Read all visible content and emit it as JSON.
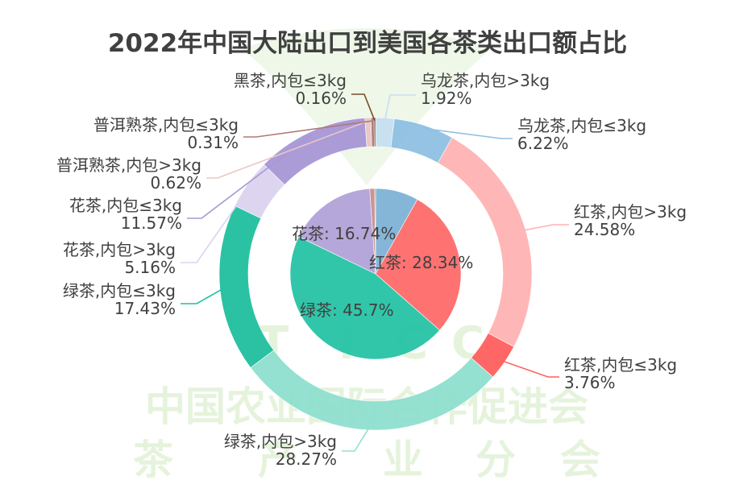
{
  "watermark": {
    "line1": "中国农业国际合作促进会",
    "line2_chars": [
      "茶",
      "产",
      "业",
      "分",
      "会"
    ],
    "letters": [
      "T",
      "I",
      "C",
      "C"
    ]
  },
  "chart_data": {
    "type": "pie",
    "title": "2022年中国大陆出口到美国各茶类出口额占比",
    "inner": [
      {
        "name": "乌龙茶",
        "value": 8.14,
        "color": "#7fb3d5",
        "label": ""
      },
      {
        "name": "红茶",
        "value": 28.34,
        "color": "#ff6b6b",
        "label": "红茶: 28.34%"
      },
      {
        "name": "绿茶",
        "value": 45.7,
        "color": "#26c4a5",
        "label": "绿茶: 45.7%"
      },
      {
        "name": "花茶",
        "value": 16.74,
        "color": "#b3a3d9",
        "label": "花茶: 16.74%"
      },
      {
        "name": "普洱熟茶",
        "value": 0.93,
        "color": "#c98f8f",
        "label": ""
      },
      {
        "name": "黑茶",
        "value": 0.16,
        "color": "#8b5a3c",
        "label": ""
      }
    ],
    "outer": [
      {
        "name": "乌龙茶,内包>3kg",
        "value": 1.92,
        "color": "#c7dff0",
        "label1": "乌龙茶,内包>3kg",
        "label2": "1.92%"
      },
      {
        "name": "乌龙茶,内包≤3kg",
        "value": 6.22,
        "color": "#8fc0e3",
        "label1": "乌龙茶,内包≤3kg",
        "label2": "6.22%"
      },
      {
        "name": "红茶,内包>3kg",
        "value": 24.58,
        "color": "#ffb3b3",
        "label1": "红茶,内包>3kg",
        "label2": "24.58%"
      },
      {
        "name": "红茶,内包≤3kg",
        "value": 3.76,
        "color": "#ff5f5f",
        "label1": "红茶,内包≤3kg",
        "label2": "3.76%"
      },
      {
        "name": "绿茶,内包>3kg",
        "value": 28.27,
        "color": "#8fe0cf",
        "label1": "绿茶,内包>3kg",
        "label2": "28.27%"
      },
      {
        "name": "绿茶,内包≤3kg",
        "value": 17.43,
        "color": "#1fbf9f",
        "label1": "绿茶,内包≤3kg",
        "label2": "17.43%"
      },
      {
        "name": "花茶,内包>3kg",
        "value": 5.16,
        "color": "#dcd3f0",
        "label1": "花茶,内包>3kg",
        "label2": "5.16%"
      },
      {
        "name": "花茶,内包≤3kg",
        "value": 11.57,
        "color": "#a797d6",
        "label1": "花茶,内包≤3kg",
        "label2": "11.57%"
      },
      {
        "name": "普洱熟茶,内包>3kg",
        "value": 0.62,
        "color": "#e8c7c7",
        "label1": "普洱熟茶,内包>3kg",
        "label2": "0.62%"
      },
      {
        "name": "普洱熟茶,内包≤3kg",
        "value": 0.31,
        "color": "#b07878",
        "label1": "普洱熟茶,内包≤3kg",
        "label2": "0.31%"
      },
      {
        "name": "黑茶,内包≤3kg",
        "value": 0.16,
        "color": "#7a4a2c",
        "label1": "黑茶,内包≤3kg",
        "label2": "0.16%"
      }
    ]
  }
}
